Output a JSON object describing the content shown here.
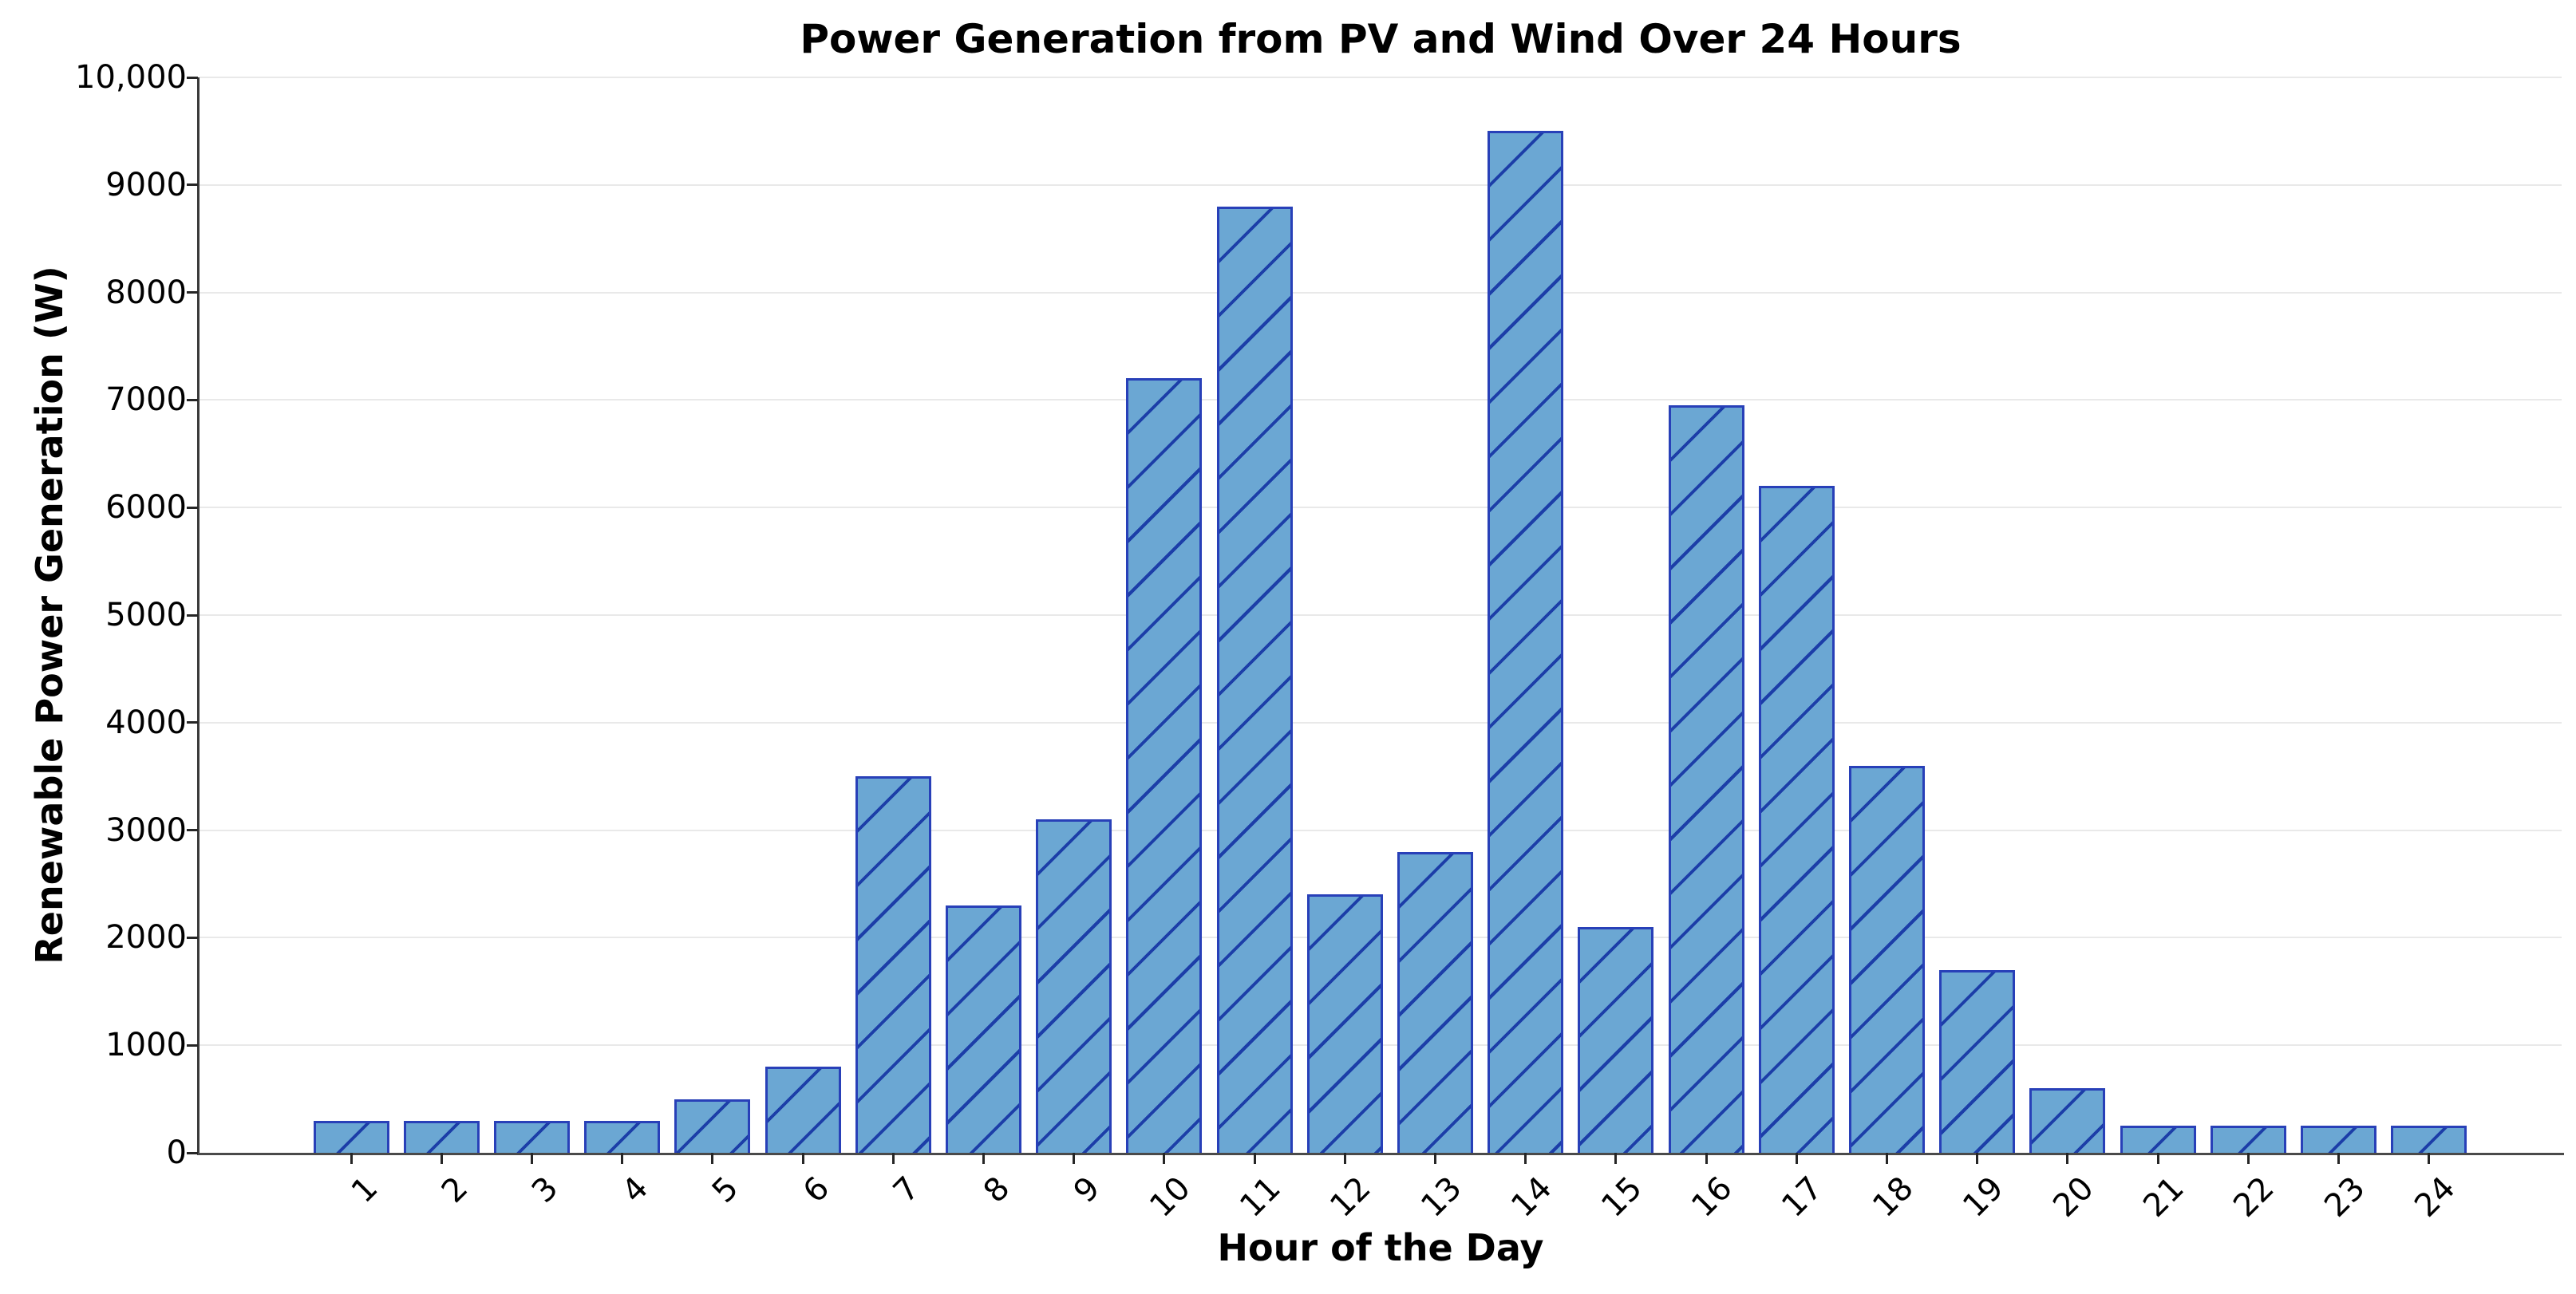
{
  "chart_data": {
    "type": "bar",
    "title": "Power Generation from PV and Wind Over 24 Hours",
    "xlabel": "Hour of the Day",
    "ylabel": "Renewable Power Generation (W)",
    "categories": [
      1,
      2,
      3,
      4,
      5,
      6,
      7,
      8,
      9,
      10,
      11,
      12,
      13,
      14,
      15,
      16,
      17,
      18,
      19,
      20,
      21,
      22,
      23,
      24
    ],
    "values": [
      300,
      300,
      300,
      300,
      500,
      800,
      3500,
      2300,
      3100,
      7200,
      8800,
      2400,
      2800,
      9500,
      2100,
      6950,
      6200,
      3600,
      1700,
      600,
      250,
      250,
      250,
      250
    ],
    "ylim": [
      0,
      10000
    ],
    "ytick_values": [
      0,
      1000,
      2000,
      3000,
      4000,
      5000,
      6000,
      7000,
      8000,
      9000,
      10000
    ],
    "ytick_labels": [
      "0",
      "1000",
      "2000",
      "3000",
      "4000",
      "5000",
      "6000",
      "7000",
      "8000",
      "9000",
      "10,000"
    ],
    "grid": "horizontal",
    "legend_position": "none",
    "x_tick_rotation_deg": 45,
    "colors": {
      "bar_fill": "#6ba7d3",
      "bar_hatch": "#1c3ea8",
      "bar_edge": "#2840b8",
      "gridline": "#e9e9e9",
      "spine": "#3a3a3a",
      "text": "#000000",
      "background": "#ffffff"
    },
    "hatch_pattern": "/"
  }
}
